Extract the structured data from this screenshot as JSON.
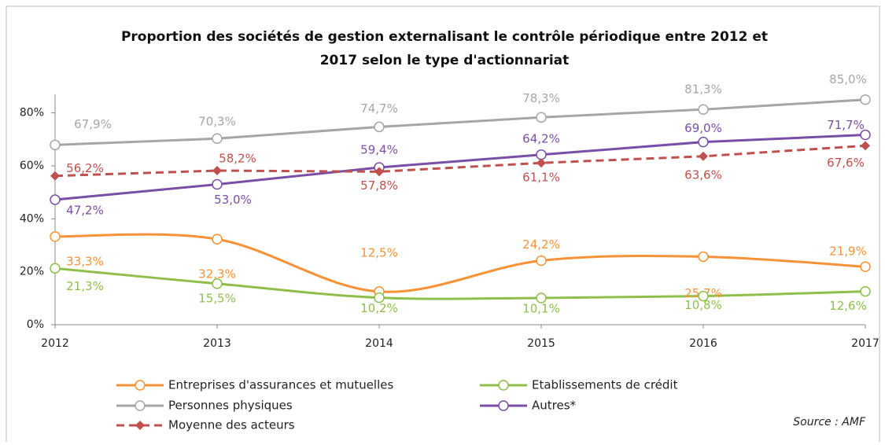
{
  "chart_data": {
    "type": "line",
    "title": "Proportion des sociétés de gestion externalisant le contrôle périodique entre 2012 et",
    "title_line2": "2017 selon le type d'actionnariat",
    "source": "Source : AMF",
    "x": [
      2012,
      2013,
      2014,
      2015,
      2016,
      2017
    ],
    "xlim": [
      2012,
      2017
    ],
    "xticks": [
      2012,
      2013,
      2014,
      2015,
      2016,
      2017
    ],
    "ylim": [
      0,
      87
    ],
    "yticks": [
      {
        "value": 0,
        "label": "0%"
      },
      {
        "value": 20,
        "label": "20%"
      },
      {
        "value": 40,
        "label": "40%"
      },
      {
        "value": 60,
        "label": "60%"
      },
      {
        "value": 80,
        "label": "80%"
      }
    ],
    "series": [
      {
        "name": "Entreprises d'assurances  et mutuelles",
        "color": "#f79237",
        "smooth": true,
        "marker": "circle",
        "values": [
          33.3,
          32.3,
          12.5,
          24.2,
          25.7,
          21.9
        ],
        "value_labels": [
          "33,3%",
          "32,3%",
          "12,5%",
          "24,2%",
          "25,7%",
          "21,9%"
        ]
      },
      {
        "name": "Etablissements de crédit",
        "color": "#8fbf4a",
        "smooth": true,
        "marker": "circle",
        "values": [
          21.3,
          15.5,
          10.2,
          10.1,
          10.8,
          12.6
        ],
        "value_labels": [
          "21,3%",
          "15,5%",
          "10,2%",
          "10,1%",
          "10,8%",
          "12,6%"
        ]
      },
      {
        "name": "Personnes physiques",
        "color": "#a6a6a6",
        "marker": "circle",
        "values": [
          67.9,
          70.3,
          74.7,
          78.3,
          81.3,
          85.0
        ],
        "value_labels": [
          "67,9%",
          "70,3%",
          "74,7%",
          "78,3%",
          "81,3%",
          "85,0%"
        ]
      },
      {
        "name": "Autres*",
        "color": "#7a4ea6",
        "marker": "circle",
        "values": [
          47.2,
          53.0,
          59.4,
          64.2,
          69.0,
          71.7
        ],
        "value_labels": [
          "47,2%",
          "53,0%",
          "59,4%",
          "64,2%",
          "69,0%",
          "71,7%"
        ]
      },
      {
        "name": "Moyenne des acteurs",
        "color": "#c0504d",
        "dashed": true,
        "marker": "diamond",
        "values": [
          56.2,
          58.2,
          57.8,
          61.1,
          63.6,
          67.6
        ],
        "value_labels": [
          "56,2%",
          "58,2%",
          "57,8%",
          "61,1%",
          "63,6%",
          "67,6%"
        ]
      }
    ]
  }
}
